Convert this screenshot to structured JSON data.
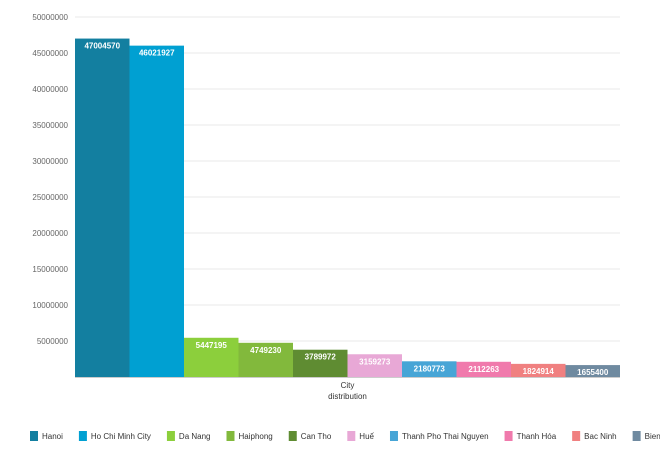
{
  "chart_data": {
    "type": "bar",
    "categories": [
      "Hanoi",
      "Ho Chi Minh City",
      "Da Nang",
      "Haiphong",
      "Can Tho",
      "Huế",
      "Thanh Pho Thai Nguyen",
      "Thanh Hóa",
      "Bac Ninh",
      "Bien Hoa"
    ],
    "values": [
      47004570,
      46021927,
      5447195,
      4749230,
      3789972,
      3159273,
      2180773,
      2112263,
      1824914,
      1655400
    ],
    "data_labels": [
      "47004570",
      "46021927",
      "5447195",
      "4749230",
      "3789972",
      "3159273",
      "2180773",
      "2112263",
      "1824914",
      "1655400"
    ],
    "colors": [
      "#137fa0",
      "#00a0d2",
      "#8ccf3c",
      "#82b93c",
      "#5f8c32",
      "#e8a8d6",
      "#47a5d6",
      "#f07aac",
      "#f08080",
      "#6f8aa0"
    ],
    "xlabel_lines": [
      "City",
      "distribution"
    ],
    "ylim": [
      0,
      50000000
    ],
    "yticks": [
      5000000,
      10000000,
      15000000,
      20000000,
      25000000,
      30000000,
      35000000,
      40000000,
      45000000,
      50000000
    ],
    "ytick_labels": [
      "5000000",
      "10000000",
      "15000000",
      "20000000",
      "25000000",
      "30000000",
      "35000000",
      "40000000",
      "45000000",
      "50000000"
    ],
    "grid": true,
    "legend_position": "bottom-left"
  }
}
